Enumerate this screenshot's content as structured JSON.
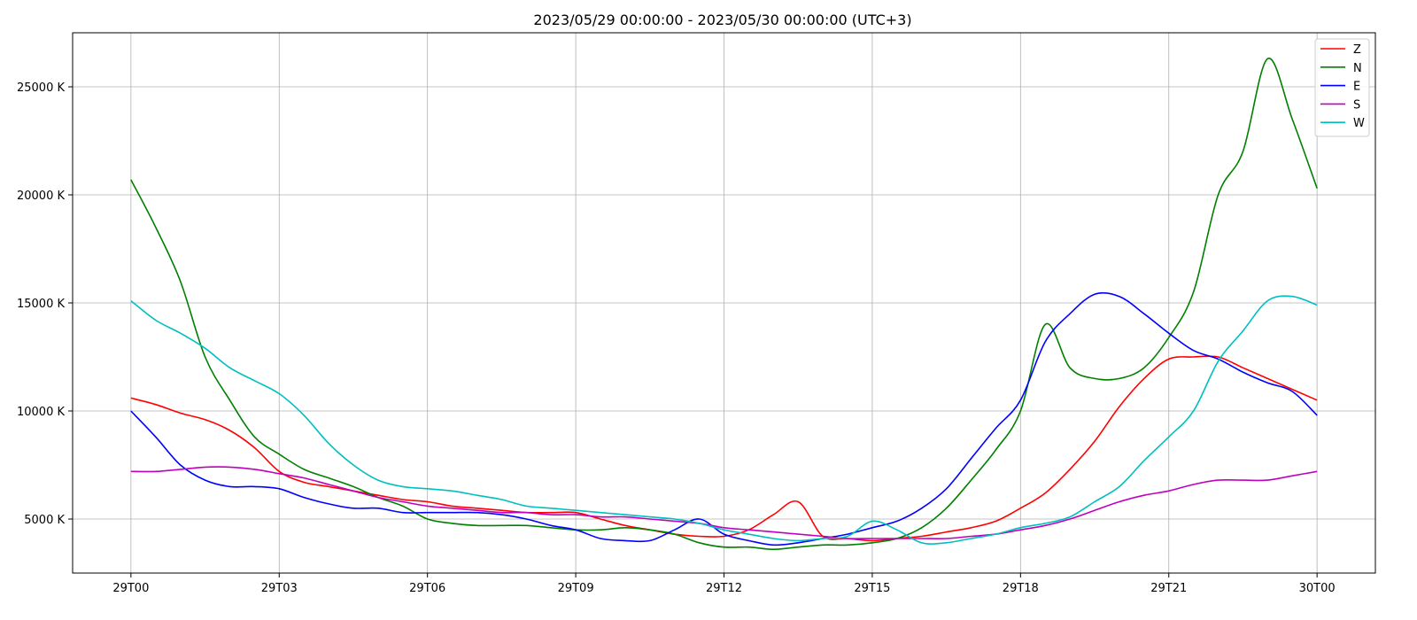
{
  "chart_data": {
    "type": "line",
    "title": "2023/05/29 00:00:00 - 2023/05/30 00:00:00 (UTC+3)",
    "xlabel": "",
    "ylabel": "",
    "x_unit": "hours since 29T00",
    "xlim": [
      -1.18,
      25.18
    ],
    "ylim": [
      2500,
      27500
    ],
    "x_ticks": [
      0,
      3,
      6,
      9,
      12,
      15,
      18,
      21,
      24
    ],
    "x_tick_labels": [
      "29T00",
      "29T03",
      "29T06",
      "29T09",
      "29T12",
      "29T15",
      "29T18",
      "29T21",
      "30T00"
    ],
    "y_ticks": [
      5000,
      10000,
      15000,
      20000,
      25000
    ],
    "y_tick_labels": [
      "5000 K",
      "10000 K",
      "15000 K",
      "20000 K",
      "25000 K"
    ],
    "grid": true,
    "legend_position": "top-right",
    "x": [
      0,
      0.5,
      1,
      1.5,
      2,
      2.5,
      3,
      3.5,
      4,
      4.5,
      5,
      5.5,
      6,
      6.5,
      7,
      7.5,
      8,
      8.5,
      9,
      9.5,
      10,
      10.5,
      11,
      11.5,
      12,
      12.5,
      13,
      13.5,
      14,
      14.5,
      15,
      15.5,
      16,
      16.5,
      17,
      17.5,
      18,
      18.5,
      19,
      19.5,
      20,
      20.5,
      21,
      21.5,
      22,
      22.5,
      23,
      23.5,
      24
    ],
    "series": [
      {
        "name": "Z",
        "color": "#ff0000",
        "values": [
          10600,
          10300,
          9900,
          9600,
          9100,
          8300,
          7200,
          6700,
          6500,
          6300,
          6100,
          5900,
          5800,
          5600,
          5500,
          5400,
          5300,
          5300,
          5300,
          5000,
          4700,
          4500,
          4300,
          4200,
          4200,
          4500,
          5200,
          5800,
          4200,
          4100,
          4000,
          4100,
          4200,
          4400,
          4600,
          4900,
          5500,
          6200,
          7300,
          8600,
          10200,
          11500,
          12400,
          12500,
          12500,
          12000,
          11500,
          11000,
          10500
        ]
      },
      {
        "name": "N",
        "color": "#008000",
        "values": [
          20700,
          18500,
          16000,
          12500,
          10500,
          8800,
          8000,
          7300,
          6900,
          6500,
          6000,
          5600,
          5000,
          4800,
          4700,
          4700,
          4700,
          4600,
          4500,
          4500,
          4600,
          4500,
          4300,
          3900,
          3700,
          3700,
          3600,
          3700,
          3800,
          3800,
          3900,
          4100,
          4600,
          5500,
          6800,
          8200,
          10000,
          14000,
          12000,
          11500,
          11500,
          12000,
          13400,
          15500,
          20000,
          22000,
          26300,
          23500,
          20300
        ]
      },
      {
        "name": "E",
        "color": "#0000ff",
        "values": [
          10000,
          8800,
          7500,
          6800,
          6500,
          6500,
          6400,
          6000,
          5700,
          5500,
          5500,
          5300,
          5300,
          5300,
          5300,
          5200,
          5000,
          4700,
          4500,
          4100,
          4000,
          4000,
          4500,
          5000,
          4300,
          4000,
          3800,
          3900,
          4100,
          4300,
          4600,
          4900,
          5500,
          6400,
          7800,
          9200,
          10500,
          13200,
          14500,
          15400,
          15300,
          14500,
          13600,
          12800,
          12400,
          11800,
          11300,
          10900,
          9800
        ]
      },
      {
        "name": "S",
        "color": "#bf00bf",
        "values": [
          7200,
          7200,
          7300,
          7400,
          7400,
          7300,
          7100,
          6900,
          6600,
          6300,
          6000,
          5800,
          5600,
          5500,
          5400,
          5300,
          5300,
          5200,
          5200,
          5100,
          5100,
          5000,
          4900,
          4800,
          4600,
          4500,
          4400,
          4300,
          4200,
          4100,
          4100,
          4100,
          4100,
          4100,
          4200,
          4300,
          4500,
          4700,
          5000,
          5400,
          5800,
          6100,
          6300,
          6600,
          6800,
          6800,
          6800,
          7000,
          7200
        ]
      },
      {
        "name": "W",
        "color": "#00bfbf",
        "values": [
          15100,
          14200,
          13600,
          12900,
          12000,
          11400,
          10800,
          9800,
          8500,
          7500,
          6800,
          6500,
          6400,
          6300,
          6100,
          5900,
          5600,
          5500,
          5400,
          5300,
          5200,
          5100,
          5000,
          4800,
          4500,
          4300,
          4100,
          4000,
          4100,
          4200,
          4900,
          4500,
          3900,
          3900,
          4100,
          4300,
          4600,
          4800,
          5100,
          5800,
          6500,
          7700,
          8800,
          10000,
          12300,
          13700,
          15100,
          15300,
          14900
        ]
      }
    ]
  }
}
